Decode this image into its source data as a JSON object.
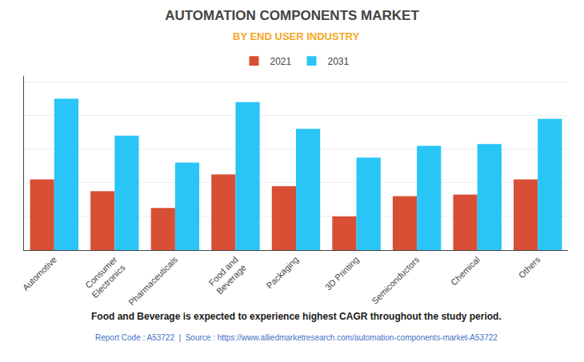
{
  "chart_data": {
    "type": "bar",
    "title": "AUTOMATION COMPONENTS MARKET",
    "subtitle": "BY END USER INDUSTRY",
    "annotations": [
      "Food and Beverage is expected to experience highest CAGR throughout the study period.",
      "Report Code : A53722  |  Source : https://www.alliedmarketresearch.com/automation-components-market-A53722"
    ],
    "categories": [
      "Automotive",
      "Consumer\nElectronics",
      "Pharmaceuticals",
      "Food and\nBeverage",
      "Packaging",
      "3D Printing",
      "Semiconductors",
      "Chemical",
      "Others"
    ],
    "series": [
      {
        "name": "2021",
        "color": "#d94f35",
        "values": [
          42,
          35,
          25,
          45,
          38,
          20,
          32,
          33,
          42
        ]
      },
      {
        "name": "2031",
        "color": "#29c5f6",
        "values": [
          90,
          68,
          52,
          88,
          72,
          55,
          62,
          63,
          78
        ]
      }
    ],
    "ylim": [
      0,
      103.5
    ],
    "yticks": [
      0,
      20,
      40,
      60,
      80,
      100
    ],
    "grid": true,
    "legend": "upper center",
    "tick_labels": "x"
  }
}
